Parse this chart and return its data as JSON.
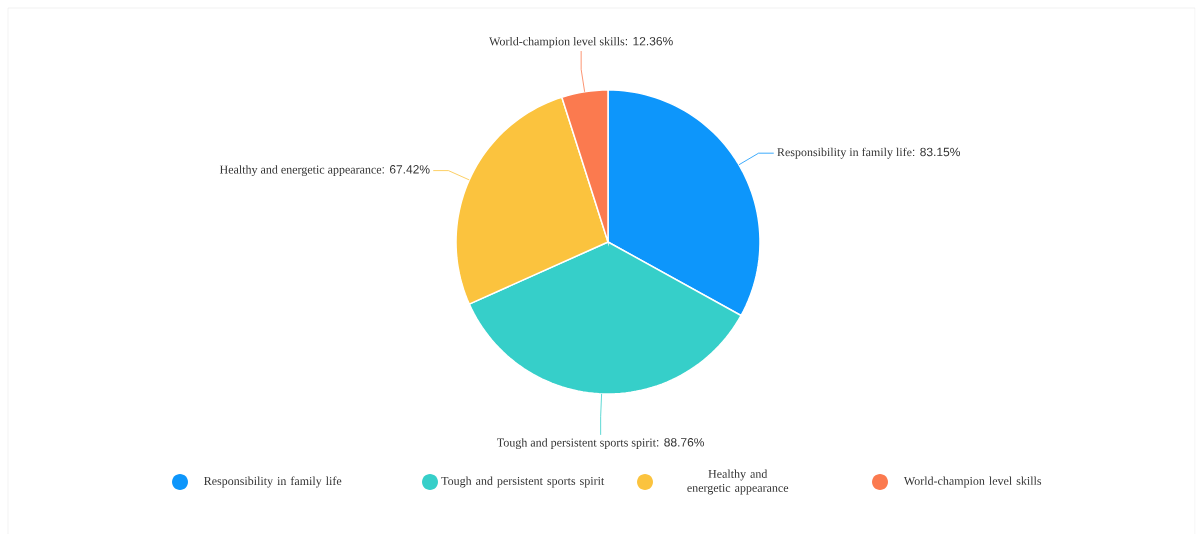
{
  "chart_data": {
    "type": "pie",
    "categories": [
      "Responsibility in family life",
      "Tough and persistent sports spirit",
      "Healthy and energetic appearance",
      "World-champion level skills"
    ],
    "values": [
      83.15,
      88.76,
      67.42,
      12.36
    ],
    "value_labels": [
      ": 83.15%",
      ": 88.76%",
      ": 67.42%",
      ": 12.36%"
    ],
    "colors": [
      "#0d96fb",
      "#36cfc9",
      "#fbc33e",
      "#fb7a4f"
    ],
    "legend": "bottom"
  }
}
